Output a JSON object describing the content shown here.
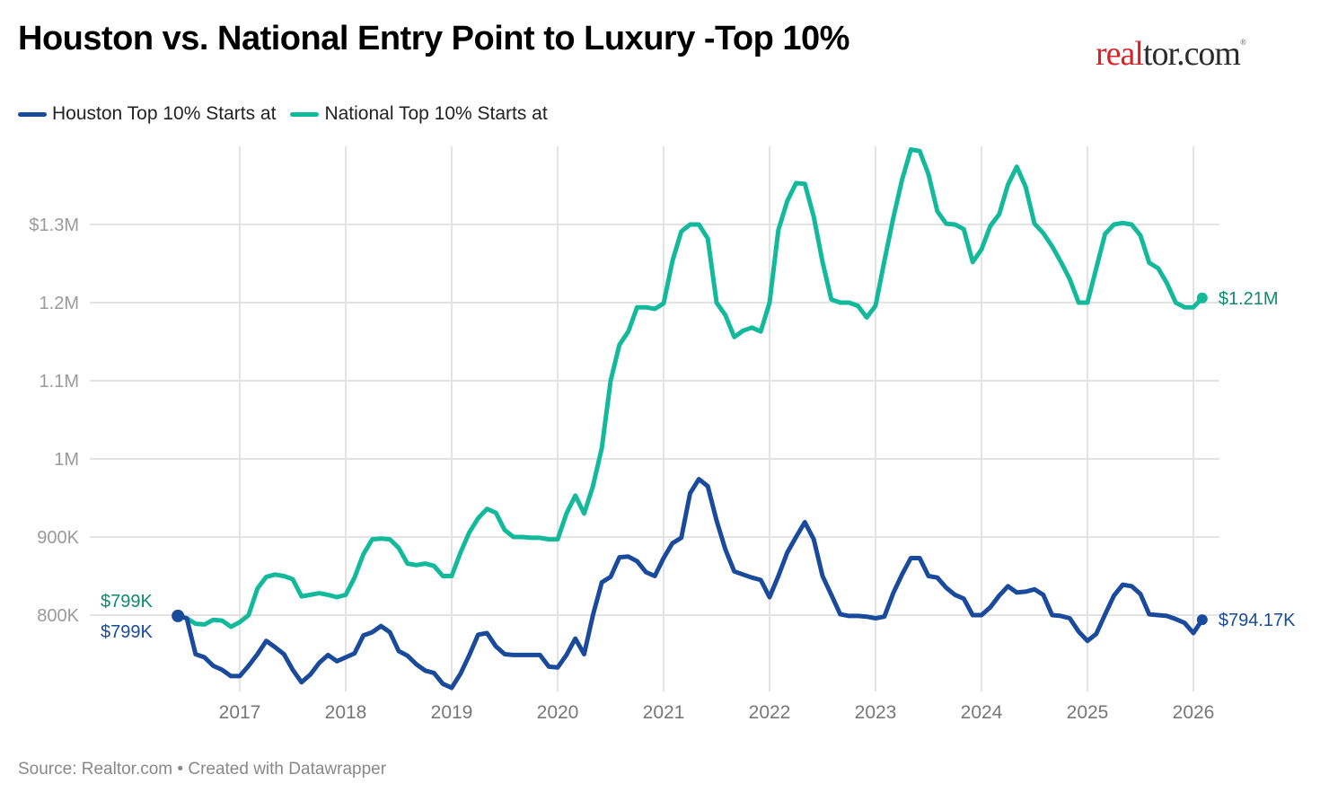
{
  "title": "Houston vs. National Entry Point to Luxury -Top 10%",
  "logo": {
    "part1": "real",
    "part2": "tor.com",
    "mark": "®"
  },
  "footer": "Source: Realtor.com • Created with Datawrapper",
  "colors": {
    "houston": "#1a4a9b",
    "national": "#12b99a",
    "national_label": "#0e8a72",
    "grid": "#e3e3e3"
  },
  "chart_data": {
    "type": "line",
    "title": "Houston vs. National Entry Point to Luxury -Top 10%",
    "xlabel": "",
    "ylabel": "",
    "x_start": "2016-06",
    "x_end": "2026-02",
    "x_frequency": "monthly",
    "xlim": [
      2016.42,
      2026.1
    ],
    "ylim": [
      703000,
      1400000
    ],
    "y_ticks": [
      {
        "value": 800000,
        "label": "800K"
      },
      {
        "value": 900000,
        "label": "900K"
      },
      {
        "value": 1000000,
        "label": "1M"
      },
      {
        "value": 1100000,
        "label": "1.1M"
      },
      {
        "value": 1200000,
        "label": "1.2M"
      },
      {
        "value": 1300000,
        "label": "$1.3M"
      }
    ],
    "x_ticks": [
      {
        "value": 2017,
        "label": "2017"
      },
      {
        "value": 2018,
        "label": "2018"
      },
      {
        "value": 2019,
        "label": "2019"
      },
      {
        "value": 2020,
        "label": "2020"
      },
      {
        "value": 2021,
        "label": "2021"
      },
      {
        "value": 2022,
        "label": "2022"
      },
      {
        "value": 2023,
        "label": "2023"
      },
      {
        "value": 2024,
        "label": "2024"
      },
      {
        "value": 2025,
        "label": "2025"
      },
      {
        "value": 2026,
        "label": "2026"
      }
    ],
    "grid": true,
    "legend": "top-left",
    "series": [
      {
        "name": "Houston Top 10% Starts at",
        "key": "houston",
        "start_label": "$799K",
        "end_label": "$794.17K",
        "values": [
          799000,
          796000,
          750000,
          746000,
          735000,
          730000,
          722000,
          722000,
          735000,
          750000,
          767000,
          759000,
          750000,
          730000,
          714000,
          724000,
          739000,
          749000,
          741000,
          746000,
          751000,
          774000,
          778000,
          786000,
          778000,
          754000,
          748000,
          737000,
          729000,
          726000,
          712000,
          707000,
          725000,
          749000,
          775000,
          777000,
          760000,
          750000,
          749000,
          749000,
          749000,
          749000,
          734000,
          733000,
          749000,
          770000,
          750000,
          800000,
          842000,
          849000,
          874000,
          875000,
          869000,
          855000,
          850000,
          873000,
          892000,
          899000,
          956000,
          974000,
          965000,
          921000,
          884000,
          856000,
          852000,
          848000,
          845000,
          823000,
          850000,
          880000,
          900000,
          919000,
          897000,
          850000,
          826000,
          801000,
          799000,
          799000,
          798000,
          796000,
          798000,
          828000,
          852000,
          873000,
          873000,
          850000,
          848000,
          835000,
          826000,
          821000,
          800000,
          800000,
          810000,
          825000,
          837000,
          829000,
          830000,
          833000,
          826000,
          800000,
          799000,
          796000,
          779000,
          767000,
          776000,
          801000,
          825000,
          839000,
          837000,
          827000,
          801000,
          800000,
          799000,
          795000,
          790000,
          777000,
          794170
        ]
      },
      {
        "name": "National Top 10% Starts at",
        "key": "national",
        "start_label": "$799K",
        "end_label": "$1.21M",
        "values": [
          799000,
          796000,
          789000,
          788000,
          794000,
          793000,
          785000,
          791000,
          800000,
          834000,
          849000,
          852000,
          850000,
          846000,
          824000,
          826000,
          828000,
          826000,
          823000,
          826000,
          848000,
          878000,
          897000,
          898000,
          897000,
          886000,
          866000,
          864000,
          866000,
          863000,
          850000,
          850000,
          880000,
          906000,
          924000,
          936000,
          931000,
          909000,
          900000,
          900000,
          899000,
          899000,
          897000,
          897000,
          930000,
          953000,
          930000,
          965000,
          1014000,
          1100000,
          1146000,
          1163000,
          1194000,
          1194000,
          1192000,
          1199000,
          1253000,
          1291000,
          1300000,
          1300000,
          1282000,
          1200000,
          1184000,
          1156000,
          1164000,
          1168000,
          1163000,
          1200000,
          1293000,
          1330000,
          1353000,
          1352000,
          1310000,
          1252000,
          1204000,
          1200000,
          1200000,
          1196000,
          1181000,
          1196000,
          1253000,
          1308000,
          1357000,
          1396000,
          1394000,
          1364000,
          1317000,
          1301000,
          1300000,
          1294000,
          1252000,
          1268000,
          1298000,
          1313000,
          1351000,
          1374000,
          1348000,
          1301000,
          1289000,
          1272000,
          1252000,
          1230000,
          1200000,
          1200000,
          1244000,
          1288000,
          1300000,
          1302000,
          1300000,
          1286000,
          1251000,
          1244000,
          1225000,
          1200000,
          1194000,
          1194000,
          1206000
        ]
      }
    ]
  }
}
